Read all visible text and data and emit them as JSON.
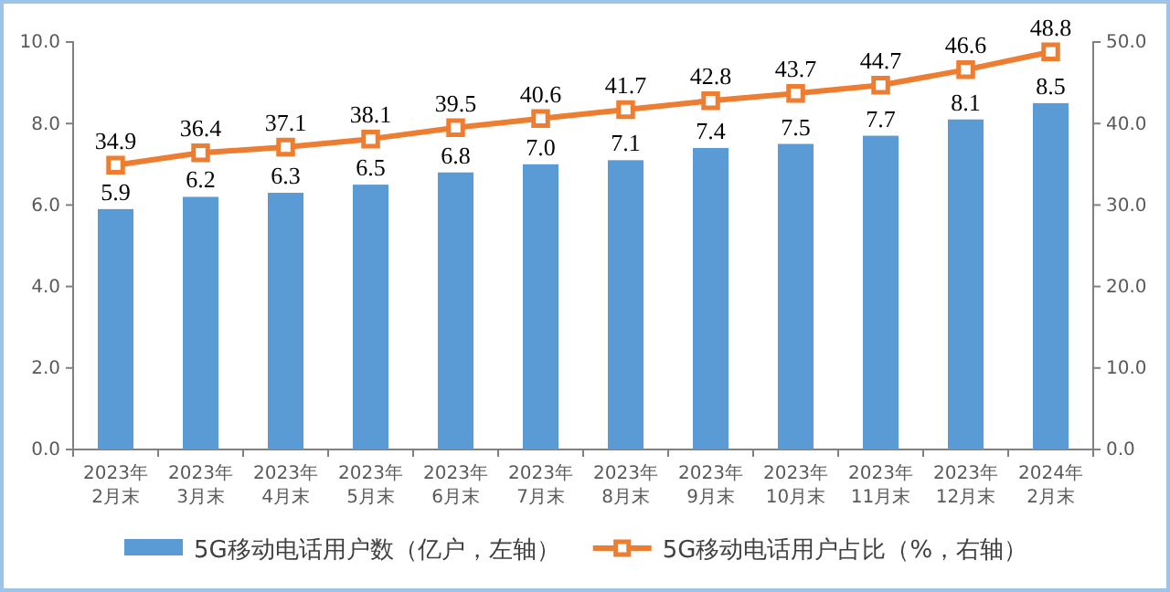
{
  "chart_data": {
    "type": "bar",
    "categories": [
      "2023年\n2月末",
      "2023年\n3月末",
      "2023年\n4月末",
      "2023年\n5月末",
      "2023年\n6月末",
      "2023年\n7月末",
      "2023年\n8月末",
      "2023年\n9月末",
      "2023年\n10月末",
      "2023年\n11月末",
      "2023年\n12月末",
      "2024年\n2月末"
    ],
    "series": [
      {
        "name": "5G移动电话用户数（亿户，左轴）",
        "color": "#5b9bd5",
        "values": [
          5.9,
          6.2,
          6.3,
          6.5,
          6.8,
          7.0,
          7.1,
          7.4,
          7.5,
          7.7,
          8.1,
          8.5
        ],
        "value_labels": [
          "5.9",
          "6.2",
          "6.3",
          "6.5",
          "6.8",
          "7.0",
          "7.1",
          "7.4",
          "7.5",
          "7.7",
          "8.1",
          "8.5"
        ]
      },
      {
        "name": "5G移动电话用户占比（%，右轴）",
        "type": "line",
        "axis": "y2",
        "color": "#ed7d31",
        "marker": "square",
        "values": [
          34.9,
          36.4,
          37.1,
          38.1,
          39.5,
          40.6,
          41.7,
          42.8,
          43.7,
          44.7,
          46.6,
          48.8
        ],
        "value_labels": [
          "34.9",
          "36.4",
          "37.1",
          "38.1",
          "39.5",
          "40.6",
          "41.7",
          "42.8",
          "43.7",
          "44.7",
          "46.6",
          "48.8"
        ]
      }
    ],
    "ylim": [
      0,
      10
    ],
    "yticks": [
      {
        "value": 0,
        "label": "0.0"
      },
      {
        "value": 2,
        "label": "2.0"
      },
      {
        "value": 4,
        "label": "4.0"
      },
      {
        "value": 6,
        "label": "6.0"
      },
      {
        "value": 8,
        "label": "8.0"
      },
      {
        "value": 10,
        "label": "10.0"
      }
    ],
    "y2lim": [
      0,
      50
    ],
    "y2ticks": [
      {
        "value": 0,
        "label": "0.0"
      },
      {
        "value": 10,
        "label": "10.0"
      },
      {
        "value": 20,
        "label": "20.0"
      },
      {
        "value": 30,
        "label": "30.0"
      },
      {
        "value": 40,
        "label": "40.0"
      },
      {
        "value": 50,
        "label": "50.0"
      }
    ],
    "grid": false,
    "legend": "bottom"
  }
}
